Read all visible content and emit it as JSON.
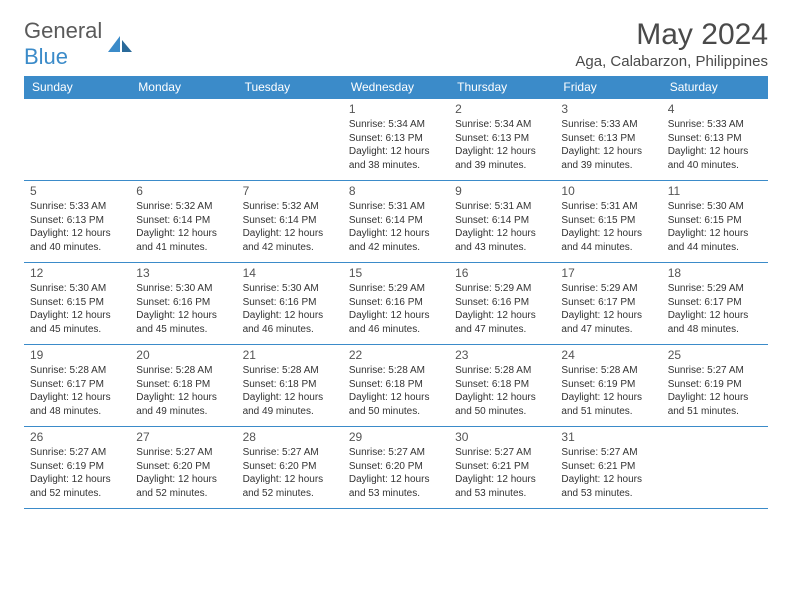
{
  "logo": {
    "text1": "General",
    "text2": "Blue",
    "icon_color": "#3b8bc9"
  },
  "header": {
    "month_title": "May 2024",
    "location": "Aga, Calabarzon, Philippines"
  },
  "style": {
    "header_bg": "#3b8bc9",
    "header_fg": "#ffffff",
    "border_color": "#3b8bc9",
    "text_color": "#333333",
    "day_num_color": "#555555"
  },
  "day_names": [
    "Sunday",
    "Monday",
    "Tuesday",
    "Wednesday",
    "Thursday",
    "Friday",
    "Saturday"
  ],
  "weeks": [
    [
      null,
      null,
      null,
      {
        "n": "1",
        "sr": "5:34 AM",
        "ss": "6:13 PM",
        "dh": "12",
        "dm": "38"
      },
      {
        "n": "2",
        "sr": "5:34 AM",
        "ss": "6:13 PM",
        "dh": "12",
        "dm": "39"
      },
      {
        "n": "3",
        "sr": "5:33 AM",
        "ss": "6:13 PM",
        "dh": "12",
        "dm": "39"
      },
      {
        "n": "4",
        "sr": "5:33 AM",
        "ss": "6:13 PM",
        "dh": "12",
        "dm": "40"
      }
    ],
    [
      {
        "n": "5",
        "sr": "5:33 AM",
        "ss": "6:13 PM",
        "dh": "12",
        "dm": "40"
      },
      {
        "n": "6",
        "sr": "5:32 AM",
        "ss": "6:14 PM",
        "dh": "12",
        "dm": "41"
      },
      {
        "n": "7",
        "sr": "5:32 AM",
        "ss": "6:14 PM",
        "dh": "12",
        "dm": "42"
      },
      {
        "n": "8",
        "sr": "5:31 AM",
        "ss": "6:14 PM",
        "dh": "12",
        "dm": "42"
      },
      {
        "n": "9",
        "sr": "5:31 AM",
        "ss": "6:14 PM",
        "dh": "12",
        "dm": "43"
      },
      {
        "n": "10",
        "sr": "5:31 AM",
        "ss": "6:15 PM",
        "dh": "12",
        "dm": "44"
      },
      {
        "n": "11",
        "sr": "5:30 AM",
        "ss": "6:15 PM",
        "dh": "12",
        "dm": "44"
      }
    ],
    [
      {
        "n": "12",
        "sr": "5:30 AM",
        "ss": "6:15 PM",
        "dh": "12",
        "dm": "45"
      },
      {
        "n": "13",
        "sr": "5:30 AM",
        "ss": "6:16 PM",
        "dh": "12",
        "dm": "45"
      },
      {
        "n": "14",
        "sr": "5:30 AM",
        "ss": "6:16 PM",
        "dh": "12",
        "dm": "46"
      },
      {
        "n": "15",
        "sr": "5:29 AM",
        "ss": "6:16 PM",
        "dh": "12",
        "dm": "46"
      },
      {
        "n": "16",
        "sr": "5:29 AM",
        "ss": "6:16 PM",
        "dh": "12",
        "dm": "47"
      },
      {
        "n": "17",
        "sr": "5:29 AM",
        "ss": "6:17 PM",
        "dh": "12",
        "dm": "47"
      },
      {
        "n": "18",
        "sr": "5:29 AM",
        "ss": "6:17 PM",
        "dh": "12",
        "dm": "48"
      }
    ],
    [
      {
        "n": "19",
        "sr": "5:28 AM",
        "ss": "6:17 PM",
        "dh": "12",
        "dm": "48"
      },
      {
        "n": "20",
        "sr": "5:28 AM",
        "ss": "6:18 PM",
        "dh": "12",
        "dm": "49"
      },
      {
        "n": "21",
        "sr": "5:28 AM",
        "ss": "6:18 PM",
        "dh": "12",
        "dm": "49"
      },
      {
        "n": "22",
        "sr": "5:28 AM",
        "ss": "6:18 PM",
        "dh": "12",
        "dm": "50"
      },
      {
        "n": "23",
        "sr": "5:28 AM",
        "ss": "6:18 PM",
        "dh": "12",
        "dm": "50"
      },
      {
        "n": "24",
        "sr": "5:28 AM",
        "ss": "6:19 PM",
        "dh": "12",
        "dm": "51"
      },
      {
        "n": "25",
        "sr": "5:27 AM",
        "ss": "6:19 PM",
        "dh": "12",
        "dm": "51"
      }
    ],
    [
      {
        "n": "26",
        "sr": "5:27 AM",
        "ss": "6:19 PM",
        "dh": "12",
        "dm": "52"
      },
      {
        "n": "27",
        "sr": "5:27 AM",
        "ss": "6:20 PM",
        "dh": "12",
        "dm": "52"
      },
      {
        "n": "28",
        "sr": "5:27 AM",
        "ss": "6:20 PM",
        "dh": "12",
        "dm": "52"
      },
      {
        "n": "29",
        "sr": "5:27 AM",
        "ss": "6:20 PM",
        "dh": "12",
        "dm": "53"
      },
      {
        "n": "30",
        "sr": "5:27 AM",
        "ss": "6:21 PM",
        "dh": "12",
        "dm": "53"
      },
      {
        "n": "31",
        "sr": "5:27 AM",
        "ss": "6:21 PM",
        "dh": "12",
        "dm": "53"
      },
      null
    ]
  ],
  "labels": {
    "sunrise": "Sunrise:",
    "sunset": "Sunset:",
    "daylight_prefix": "Daylight:",
    "hours_word": "hours",
    "and_word": "and",
    "minutes_word": "minutes."
  }
}
